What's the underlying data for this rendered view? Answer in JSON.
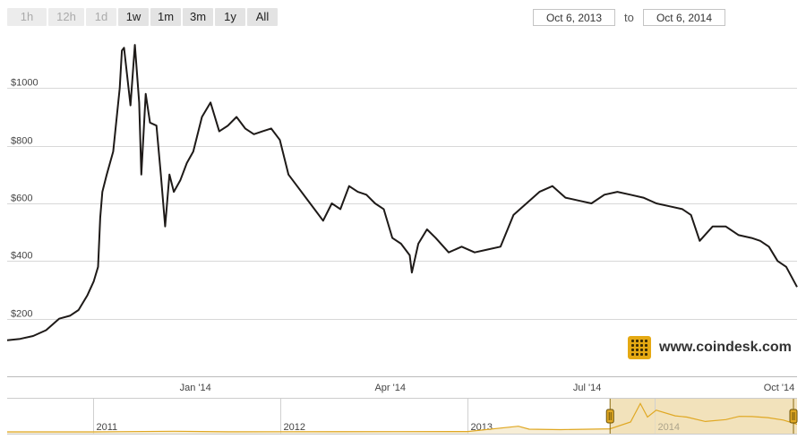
{
  "range_selector": {
    "buttons": [
      {
        "label": "1h",
        "enabled": false
      },
      {
        "label": "12h",
        "enabled": false
      },
      {
        "label": "1d",
        "enabled": false
      },
      {
        "label": "1w",
        "enabled": true
      },
      {
        "label": "1m",
        "enabled": true
      },
      {
        "label": "3m",
        "enabled": true
      },
      {
        "label": "1y",
        "enabled": true
      },
      {
        "label": "All",
        "enabled": true
      }
    ]
  },
  "date_range": {
    "from": "Oct 6, 2013",
    "to_label": "to",
    "to": "Oct 6, 2014"
  },
  "branding": {
    "text": "www.coindesk.com"
  },
  "colors": {
    "line": "#1e1a18",
    "grid": "#d8d8d8",
    "navigator": "#e0a823",
    "navigator_fill": "#f2e2bb",
    "logo": "#e5a913"
  },
  "chart_data": [
    {
      "type": "line",
      "title": "",
      "xlabel": "",
      "ylabel": "",
      "xlim": [
        "2013-10-06",
        "2014-10-06"
      ],
      "ylim": [
        0,
        1200
      ],
      "y_ticks": [
        200,
        400,
        600,
        800,
        1000
      ],
      "y_tick_labels": [
        "$200",
        "$400",
        "$600",
        "$800",
        "$1000"
      ],
      "x_ticks": [
        "2014-01-01",
        "2014-04-01",
        "2014-07-01",
        "2014-10-01"
      ],
      "x_tick_labels": [
        "Jan '14",
        "Apr '14",
        "Jul '14",
        "Oct '14"
      ],
      "grid": true,
      "series": [
        {
          "x": [
            "2013-10-06",
            "2013-10-12",
            "2013-10-18",
            "2013-10-24",
            "2013-10-30",
            "2013-11-04",
            "2013-11-08",
            "2013-11-12",
            "2013-11-15",
            "2013-11-17",
            "2013-11-18",
            "2013-11-19",
            "2013-11-21",
            "2013-11-24",
            "2013-11-27",
            "2013-11-28",
            "2013-11-29",
            "2013-12-02",
            "2013-12-04",
            "2013-12-06",
            "2013-12-07",
            "2013-12-09",
            "2013-12-11",
            "2013-12-14",
            "2013-12-16",
            "2013-12-18",
            "2013-12-20",
            "2013-12-22",
            "2013-12-25",
            "2013-12-28",
            "2013-12-31",
            "2014-01-04",
            "2014-01-08",
            "2014-01-12",
            "2014-01-16",
            "2014-01-20",
            "2014-01-24",
            "2014-01-28",
            "2014-02-01",
            "2014-02-05",
            "2014-02-09",
            "2014-02-13",
            "2014-02-17",
            "2014-02-21",
            "2014-02-25",
            "2014-03-01",
            "2014-03-05",
            "2014-03-09",
            "2014-03-13",
            "2014-03-17",
            "2014-03-21",
            "2014-03-25",
            "2014-03-29",
            "2014-04-02",
            "2014-04-06",
            "2014-04-10",
            "2014-04-11",
            "2014-04-14",
            "2014-04-18",
            "2014-04-22",
            "2014-04-28",
            "2014-05-04",
            "2014-05-10",
            "2014-05-16",
            "2014-05-22",
            "2014-05-28",
            "2014-06-03",
            "2014-06-09",
            "2014-06-15",
            "2014-06-21",
            "2014-06-27",
            "2014-07-03",
            "2014-07-09",
            "2014-07-15",
            "2014-07-21",
            "2014-07-27",
            "2014-08-02",
            "2014-08-08",
            "2014-08-14",
            "2014-08-18",
            "2014-08-22",
            "2014-08-28",
            "2014-09-03",
            "2014-09-09",
            "2014-09-15",
            "2014-09-19",
            "2014-09-23",
            "2014-09-27",
            "2014-10-01",
            "2014-10-06"
          ],
          "y": [
            125,
            130,
            140,
            160,
            200,
            210,
            230,
            280,
            330,
            380,
            550,
            640,
            700,
            780,
            1000,
            1130,
            1140,
            940,
            1150,
            950,
            700,
            980,
            880,
            870,
            700,
            520,
            700,
            640,
            680,
            740,
            780,
            900,
            950,
            850,
            870,
            900,
            860,
            840,
            850,
            860,
            820,
            700,
            660,
            620,
            580,
            540,
            600,
            580,
            660,
            640,
            630,
            600,
            580,
            480,
            460,
            420,
            360,
            460,
            510,
            480,
            430,
            450,
            430,
            440,
            450,
            560,
            600,
            640,
            660,
            620,
            610,
            600,
            630,
            640,
            630,
            620,
            600,
            590,
            580,
            560,
            470,
            520,
            520,
            490,
            480,
            470,
            450,
            400,
            380,
            310
          ]
        }
      ]
    },
    {
      "type": "area",
      "title": "",
      "x_tick_labels": [
        "2011",
        "2012",
        "2013",
        "2014"
      ],
      "x_ticks": [
        "2011-01-01",
        "2012-01-01",
        "2013-01-01",
        "2014-01-01"
      ],
      "xlim": [
        "2010-07-17",
        "2014-10-06"
      ],
      "ylim": [
        0,
        1200
      ],
      "series": [
        {
          "x": [
            "2010-07-17",
            "2011-01-01",
            "2011-06-08",
            "2011-10-01",
            "2012-01-01",
            "2012-08-15",
            "2013-01-01",
            "2013-04-10",
            "2013-05-01",
            "2013-07-01",
            "2013-10-06",
            "2013-11-15",
            "2013-12-04",
            "2013-12-18",
            "2014-01-04",
            "2014-02-10",
            "2014-03-05",
            "2014-04-10",
            "2014-05-20",
            "2014-06-15",
            "2014-07-10",
            "2014-08-10",
            "2014-09-09",
            "2014-10-06"
          ],
          "y": [
            0,
            1,
            25,
            5,
            6,
            11,
            13,
            230,
            110,
            90,
            125,
            400,
            1150,
            600,
            880,
            650,
            600,
            420,
            500,
            630,
            620,
            580,
            480,
            310
          ]
        }
      ]
    }
  ]
}
